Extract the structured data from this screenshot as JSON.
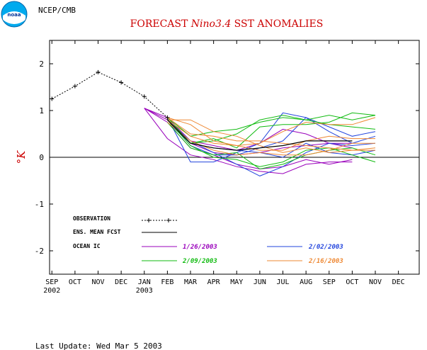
{
  "header": {
    "org_label": "NCEP/CMB",
    "logo_text": "noaa"
  },
  "chart_data": {
    "type": "line",
    "title": "FORECAST Nino3.4 SST ANOMALIES",
    "title_parts": [
      "FORECAST ",
      "Nino3.4",
      " SST ANOMALIES"
    ],
    "ylabel": "°K",
    "xlabel": "",
    "ylim": [
      -2.5,
      2.5
    ],
    "xlim": [
      -0.1,
      15.9
    ],
    "y_ticks": [
      2,
      1,
      0,
      -1,
      -2
    ],
    "y_tick_labels": [
      "2",
      "1",
      "0",
      "-1",
      "-2"
    ],
    "x_tick_labels": [
      "SEP",
      "OCT",
      "NOV",
      "DEC",
      "JAN",
      "FEB",
      "MAR",
      "APR",
      "MAY",
      "JUN",
      "JUL",
      "AUG",
      "SEP",
      "OCT",
      "NOV",
      "DEC"
    ],
    "x_year_labels": [
      {
        "at": 0,
        "label": "2002"
      },
      {
        "at": 4,
        "label": "2003"
      }
    ],
    "zero_line": true,
    "grid": false,
    "legend": {
      "placement": "bottom-left",
      "observation_label": "OBSERVATION",
      "ens_mean_label": "ENS. MEAN FCST",
      "ocean_ic_label": "OCEAN IC",
      "ic_dates": [
        "1/26/2003",
        "2/02/2003",
        "2/09/2003",
        "2/16/2003"
      ]
    },
    "colors": {
      "observation": "#000000",
      "ens_mean": "#000000",
      "ic_1_26": "#9900bb",
      "ic_2_02": "#2244dd",
      "ic_2_09": "#11bb11",
      "ic_2_16": "#ee8833",
      "title": "#cc0000",
      "ylabel": "#cc0000"
    },
    "observation": {
      "x": [
        0,
        1,
        2,
        3,
        4,
        5
      ],
      "y": [
        1.25,
        1.52,
        1.82,
        1.6,
        1.3,
        0.85
      ]
    },
    "ensemble_mean": {
      "x": [
        5,
        6,
        7,
        8,
        9,
        10,
        11,
        12,
        13
      ],
      "y": [
        0.8,
        0.3,
        0.2,
        0.15,
        0.2,
        0.25,
        0.35,
        0.35,
        0.35
      ]
    },
    "series": [
      {
        "name": "1/26/2003",
        "group": "ic_1_26",
        "x": [
          4,
          5,
          6,
          7,
          8,
          9,
          10,
          11,
          12,
          13
        ],
        "y": [
          1.05,
          0.75,
          0.2,
          0.05,
          -0.15,
          -0.25,
          -0.2,
          -0.05,
          -0.15,
          -0.05
        ]
      },
      {
        "name": "1/26/2003",
        "group": "ic_1_26",
        "x": [
          4,
          5,
          6,
          7,
          8,
          9,
          10,
          11,
          12,
          13
        ],
        "y": [
          1.05,
          0.4,
          0.05,
          -0.05,
          -0.2,
          -0.3,
          -0.35,
          -0.15,
          -0.1,
          -0.1
        ]
      },
      {
        "name": "1/26/2003",
        "group": "ic_1_26",
        "x": [
          4,
          5,
          6,
          7,
          8,
          9,
          10,
          11,
          12,
          13
        ],
        "y": [
          1.05,
          0.8,
          0.3,
          0.1,
          0.05,
          0.1,
          0.2,
          0.25,
          0.3,
          0.2
        ]
      },
      {
        "name": "1/26/2003",
        "group": "ic_1_26",
        "x": [
          4,
          5,
          6,
          7,
          8,
          9,
          10,
          11,
          12,
          13
        ],
        "y": [
          1.05,
          0.85,
          0.35,
          0.25,
          0.15,
          0.3,
          0.6,
          0.5,
          0.3,
          0.3
        ]
      },
      {
        "name": "2/02/2003",
        "group": "ic_2_02",
        "x": [
          5,
          6,
          7,
          8,
          9,
          10,
          11,
          12,
          13,
          14
        ],
        "y": [
          0.85,
          -0.1,
          -0.1,
          0.1,
          0.3,
          0.95,
          0.85,
          0.65,
          0.45,
          0.55
        ]
      },
      {
        "name": "2/02/2003",
        "group": "ic_2_02",
        "x": [
          5,
          6,
          7,
          8,
          9,
          10,
          11,
          12,
          13,
          14
        ],
        "y": [
          0.8,
          0.35,
          0.1,
          -0.15,
          -0.4,
          -0.2,
          0.1,
          0.3,
          0.25,
          0.3
        ]
      },
      {
        "name": "2/02/2003",
        "group": "ic_2_02",
        "x": [
          5,
          6,
          7,
          8,
          9,
          10,
          11,
          12,
          13,
          14
        ],
        "y": [
          0.8,
          0.25,
          0.05,
          0.05,
          0.2,
          0.35,
          0.85,
          0.55,
          0.3,
          0.45
        ]
      },
      {
        "name": "2/02/2003",
        "group": "ic_2_02",
        "x": [
          5,
          6,
          7,
          8,
          9,
          10,
          11,
          12,
          13,
          14
        ],
        "y": [
          0.75,
          0.3,
          0.2,
          0.15,
          0.1,
          0.0,
          0.3,
          0.1,
          0.05,
          0.15
        ]
      },
      {
        "name": "2/09/2003",
        "group": "ic_2_09",
        "x": [
          5,
          6,
          7,
          8,
          9,
          10,
          11,
          12,
          13,
          14
        ],
        "y": [
          0.85,
          0.45,
          0.55,
          0.6,
          0.75,
          0.85,
          0.8,
          0.7,
          0.65,
          0.6
        ]
      },
      {
        "name": "2/09/2003",
        "group": "ic_2_09",
        "x": [
          5,
          6,
          7,
          8,
          9,
          10,
          11,
          12,
          13,
          14
        ],
        "y": [
          0.8,
          0.3,
          0.35,
          0.5,
          0.8,
          0.9,
          0.8,
          0.9,
          0.8,
          0.9
        ]
      },
      {
        "name": "2/09/2003",
        "group": "ic_2_09",
        "x": [
          5,
          6,
          7,
          8,
          9,
          10,
          11,
          12,
          13,
          14
        ],
        "y": [
          0.8,
          0.25,
          0.0,
          -0.05,
          -0.2,
          -0.1,
          0.15,
          0.2,
          0.05,
          -0.1
        ]
      },
      {
        "name": "2/09/2003",
        "group": "ic_2_09",
        "x": [
          5,
          6,
          7,
          8,
          9,
          10,
          11,
          12,
          13,
          14
        ],
        "y": [
          0.85,
          0.3,
          0.4,
          0.2,
          0.65,
          0.7,
          0.7,
          0.75,
          0.95,
          0.9
        ]
      },
      {
        "name": "2/09/2003",
        "group": "ic_2_09",
        "x": [
          5,
          6,
          7,
          8,
          9,
          10,
          11,
          12,
          13,
          14
        ],
        "y": [
          0.75,
          0.2,
          0.05,
          0.1,
          -0.25,
          -0.15,
          0.05,
          0.15,
          0.2,
          0.05
        ]
      },
      {
        "name": "2/16/2003",
        "group": "ic_2_16",
        "x": [
          5,
          6,
          7,
          8,
          9,
          10,
          11,
          12,
          13,
          14
        ],
        "y": [
          0.85,
          0.5,
          0.45,
          0.35,
          0.35,
          0.3,
          0.25,
          0.2,
          0.15,
          0.2
        ]
      },
      {
        "name": "2/16/2003",
        "group": "ic_2_16",
        "x": [
          5,
          6,
          7,
          8,
          9,
          10,
          11,
          12,
          13,
          14
        ],
        "y": [
          0.85,
          0.7,
          0.35,
          0.25,
          0.15,
          0.15,
          0.35,
          0.45,
          0.4,
          0.4
        ]
      },
      {
        "name": "2/16/2003",
        "group": "ic_2_16",
        "x": [
          5,
          6,
          7,
          8,
          9,
          10,
          11,
          12,
          13,
          14
        ],
        "y": [
          0.8,
          0.8,
          0.55,
          0.45,
          0.25,
          0.1,
          0.2,
          0.1,
          0.15,
          0.15
        ]
      },
      {
        "name": "2/16/2003",
        "group": "ic_2_16",
        "x": [
          5,
          6,
          7,
          8,
          9,
          10,
          11,
          12,
          13,
          14
        ],
        "y": [
          0.8,
          0.45,
          0.3,
          0.25,
          0.3,
          0.55,
          0.75,
          0.7,
          0.7,
          0.85
        ]
      },
      {
        "name": "2/16/2003",
        "group": "ic_2_16",
        "x": [
          5,
          6,
          7,
          8,
          9,
          10,
          11,
          12,
          13,
          14
        ],
        "y": [
          0.75,
          0.35,
          0.15,
          0.05,
          0.1,
          0.05,
          0.05,
          0.15,
          0.3,
          0.3
        ]
      }
    ]
  },
  "footer": {
    "last_update": "Last Update: Wed Mar 5 2003"
  }
}
